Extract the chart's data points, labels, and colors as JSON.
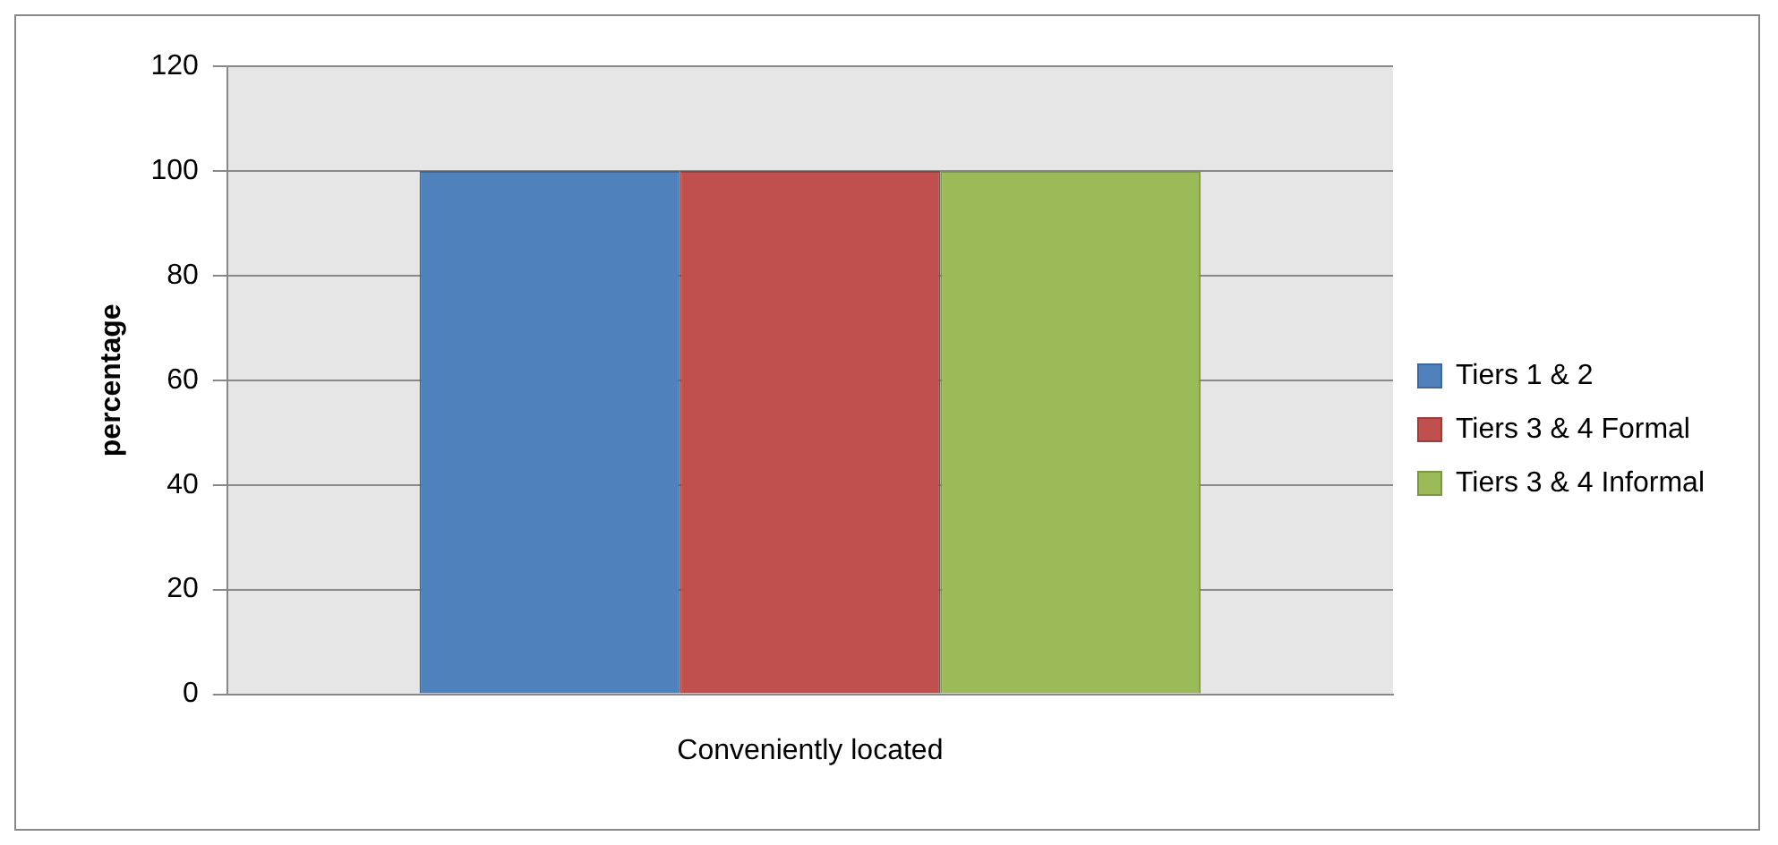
{
  "chart_data": {
    "type": "bar",
    "categories": [
      "Conveniently located"
    ],
    "ylabel": "percentage",
    "series": [
      {
        "name": "Tiers 1 & 2",
        "color": "#4f81bd",
        "values": [
          100
        ]
      },
      {
        "name": "Tiers 3 & 4 Formal",
        "color": "#c0504d",
        "values": [
          100
        ]
      },
      {
        "name": "Tiers 3 & 4 Informal",
        "color": "#9bbb59",
        "values": [
          100
        ]
      }
    ],
    "ylim": [
      0,
      120
    ],
    "yticks": [
      0,
      20,
      40,
      60,
      80,
      100,
      120
    ],
    "grid": "y",
    "legend": "right"
  }
}
